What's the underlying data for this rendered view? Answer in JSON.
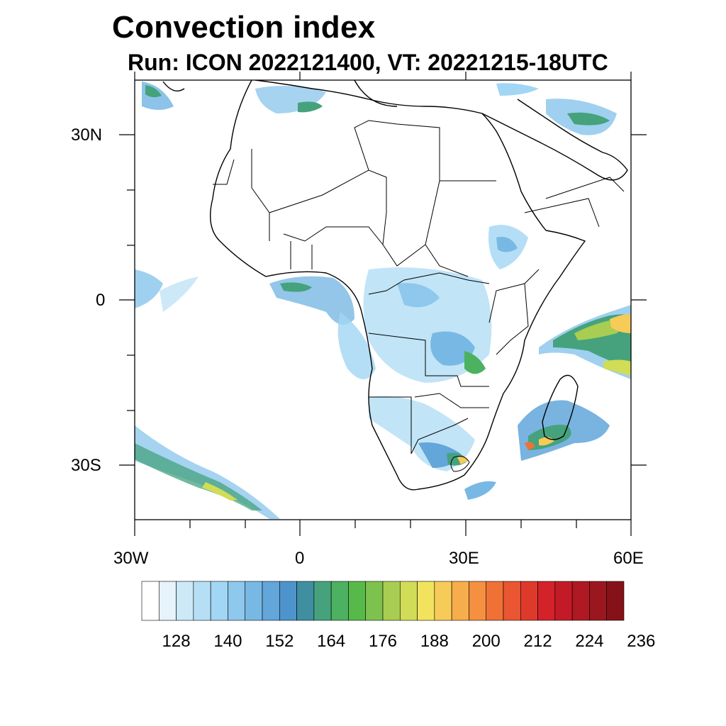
{
  "title": "Convection index",
  "subtitle": "Run: ICON 2022121400,  VT: 20221215-18UTC",
  "map": {
    "lon_labels": [
      "30W",
      "0",
      "30E",
      "60E"
    ],
    "lat_labels": [
      "30N",
      "0",
      "30S"
    ],
    "extent": {
      "lon_min": -30,
      "lon_max": 60,
      "lat_min": -40,
      "lat_max": 40
    }
  },
  "colorbar": {
    "colors": [
      "#ffffff",
      "#e6f3fb",
      "#cde9f8",
      "#b6dff6",
      "#a1d6f4",
      "#8ec8ec",
      "#78b8e4",
      "#62a6da",
      "#4e94cc",
      "#3f8fa0",
      "#45a27d",
      "#4cb160",
      "#58b94b",
      "#7dc24e",
      "#a8cd52",
      "#d1dc57",
      "#f2e35e",
      "#f7cb58",
      "#f6ad4c",
      "#f49040",
      "#ef7136",
      "#e95631",
      "#de3a2c",
      "#d32229",
      "#c21b27",
      "#af1924",
      "#9b1720",
      "#861219"
    ],
    "tick_labels": [
      "128",
      "140",
      "152",
      "164",
      "176",
      "188",
      "200",
      "212",
      "224",
      "236"
    ]
  }
}
